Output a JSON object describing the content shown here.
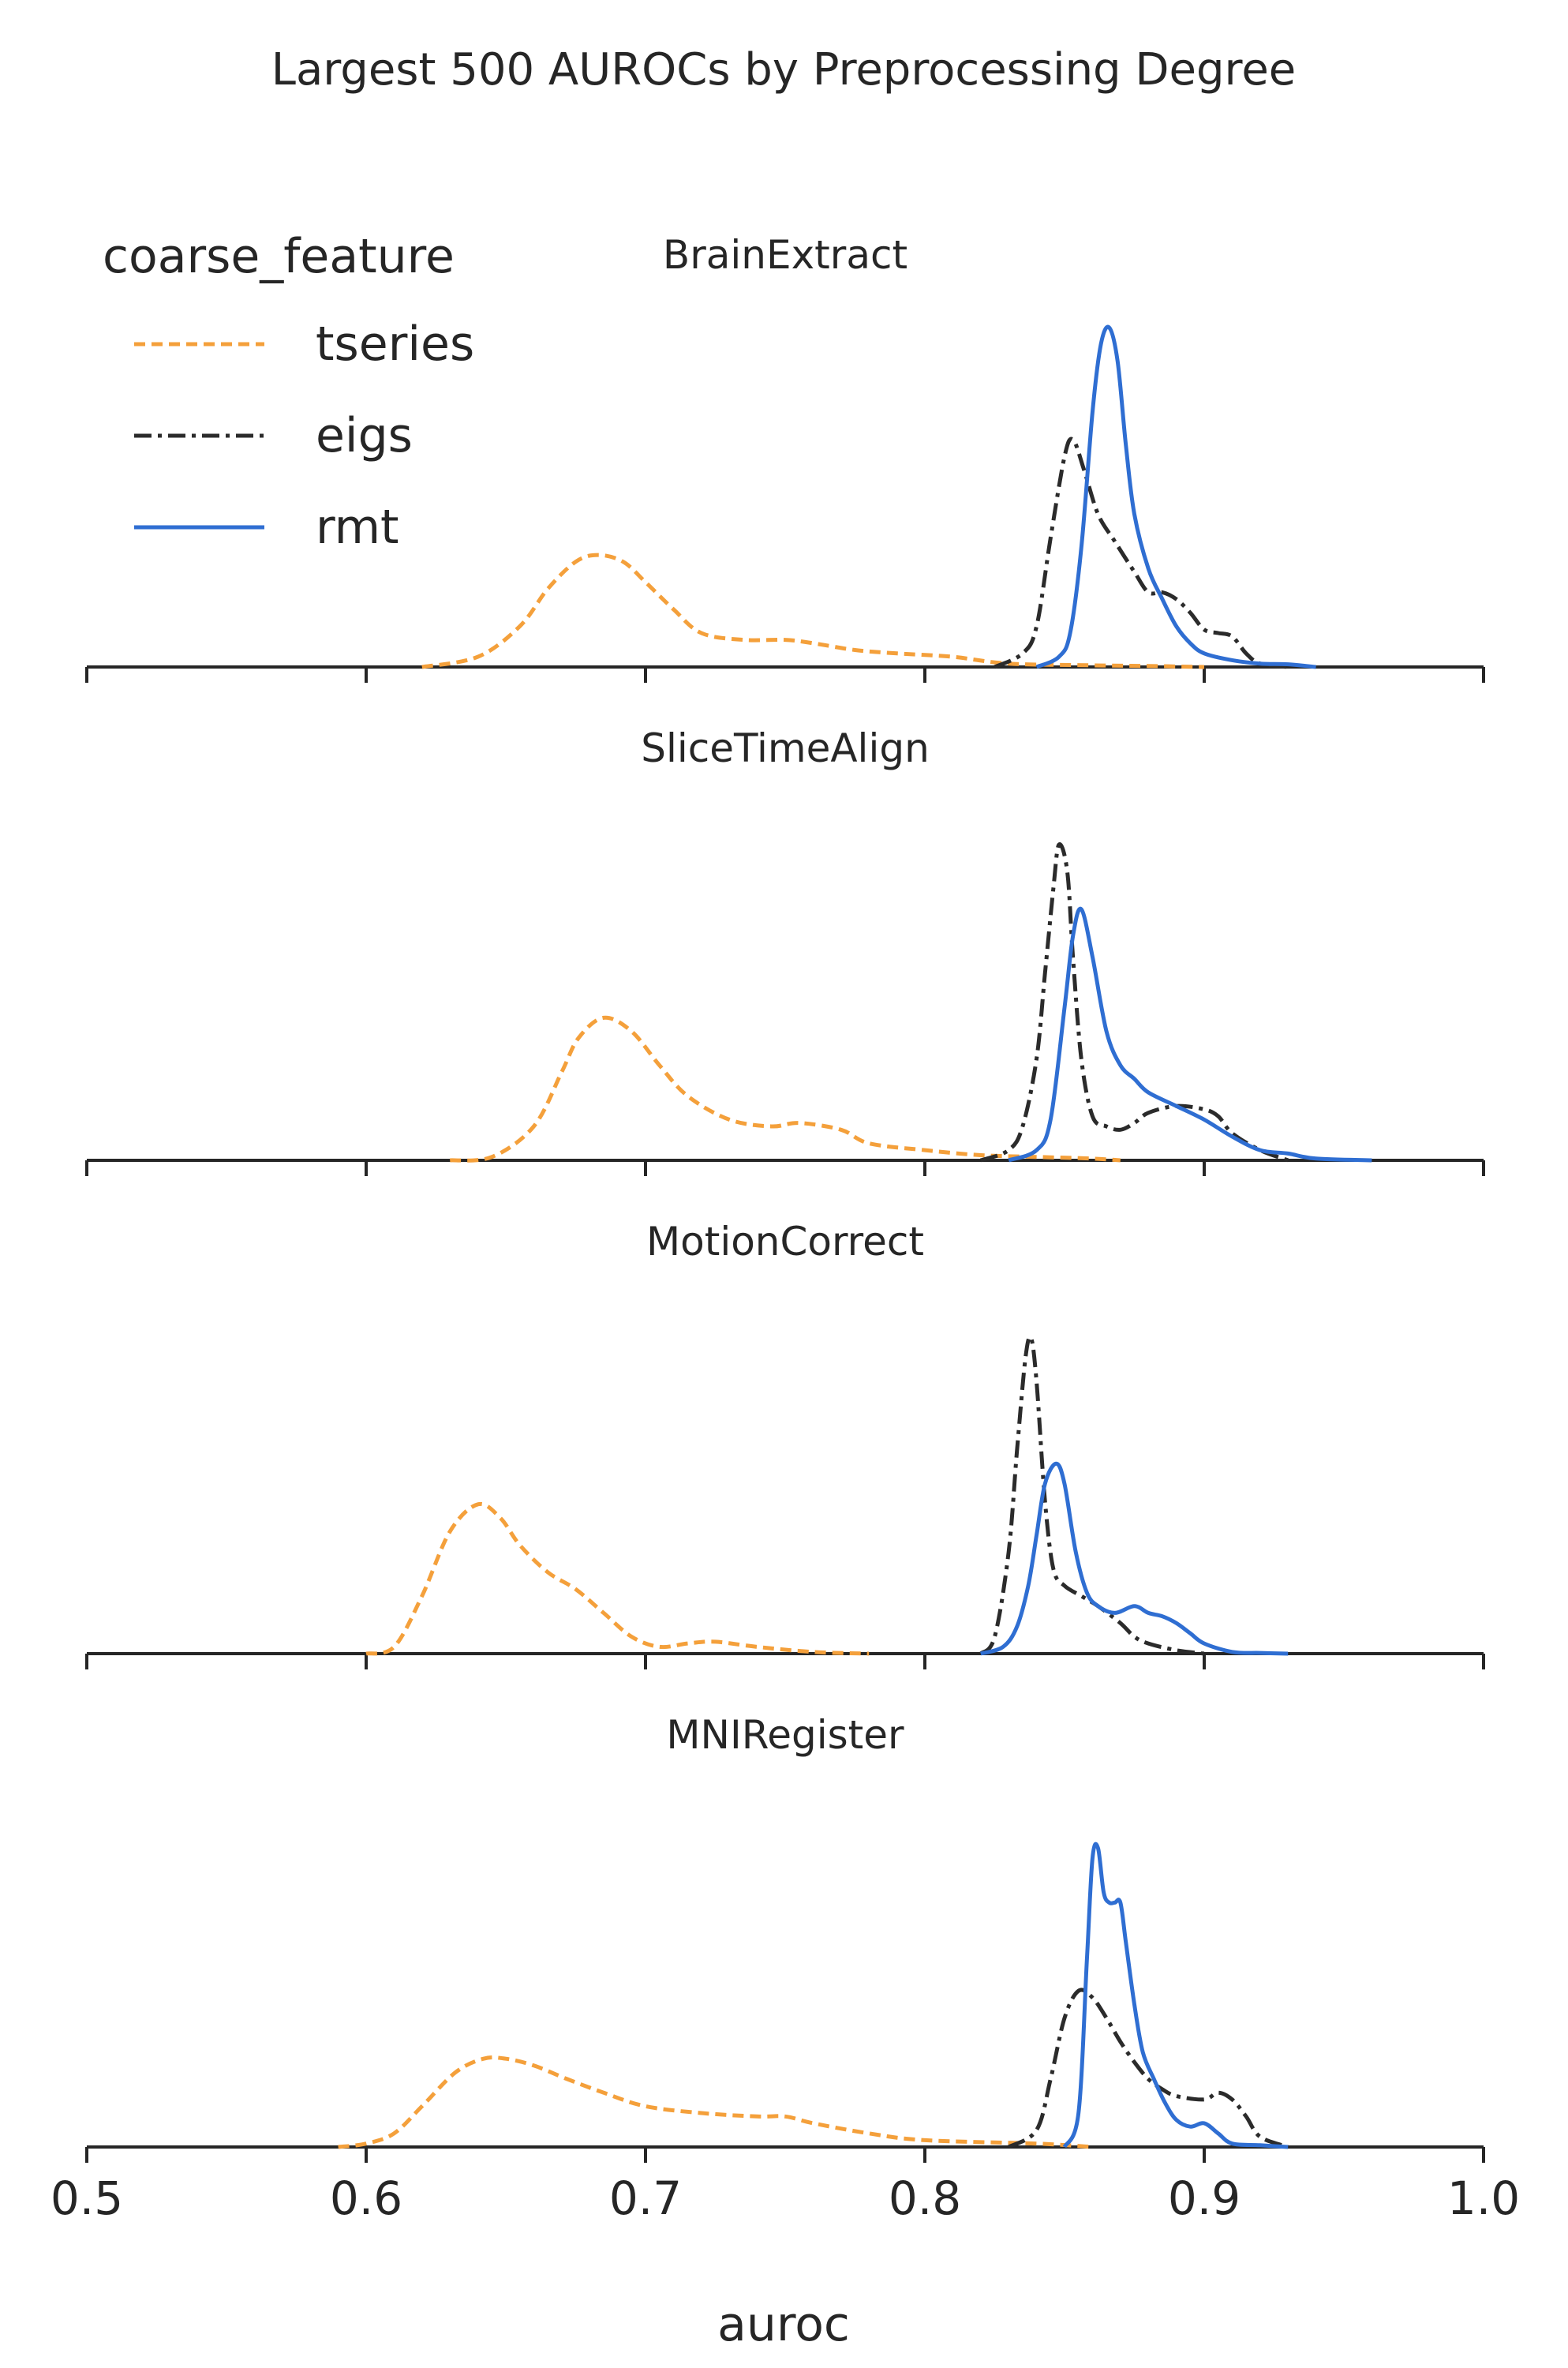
{
  "figure": {
    "title": "Largest 500 AUROCs by Preprocessing Degree",
    "xlabel": "auroc"
  },
  "legend": {
    "title": "coarse_feature",
    "items": [
      {
        "name": "tseries",
        "color": "#f4a03b",
        "dash": "dashed"
      },
      {
        "name": "eigs",
        "color": "#2b2b2b",
        "dash": "dashdot"
      },
      {
        "name": "rmt",
        "color": "#2f6ed2",
        "dash": "solid"
      }
    ]
  },
  "chart_data": {
    "type": "line",
    "xlabel": "auroc",
    "ylabel": "",
    "xlim": [
      0.5,
      1.0
    ],
    "xticks": [
      "0.5",
      "0.6",
      "0.7",
      "0.8",
      "0.9",
      "1.0"
    ],
    "grid": false,
    "legend_position": "top-left",
    "panels": [
      {
        "title": "BrainExtract",
        "ymax": 1.0,
        "series": [
          {
            "name": "tseries",
            "x": [
              0.62,
              0.64,
              0.655,
              0.665,
              0.675,
              0.683,
              0.692,
              0.7,
              0.71,
              0.72,
              0.735,
              0.75,
              0.76,
              0.775,
              0.79,
              0.81,
              0.83,
              0.86,
              0.88,
              0.9
            ],
            "y": [
              0.0,
              0.03,
              0.12,
              0.23,
              0.31,
              0.33,
              0.31,
              0.25,
              0.17,
              0.1,
              0.08,
              0.08,
              0.07,
              0.05,
              0.04,
              0.03,
              0.01,
              0.005,
              0.003,
              0.0
            ]
          },
          {
            "name": "eigs",
            "x": [
              0.825,
              0.835,
              0.84,
              0.845,
              0.85,
              0.853,
              0.857,
              0.862,
              0.868,
              0.875,
              0.88,
              0.885,
              0.89,
              0.895,
              0.9,
              0.905,
              0.91,
              0.915,
              0.92,
              0.93
            ],
            "y": [
              0.0,
              0.04,
              0.12,
              0.38,
              0.62,
              0.67,
              0.58,
              0.45,
              0.37,
              0.28,
              0.22,
              0.22,
              0.2,
              0.16,
              0.11,
              0.1,
              0.09,
              0.04,
              0.01,
              0.0
            ]
          },
          {
            "name": "rmt",
            "x": [
              0.84,
              0.848,
              0.852,
              0.856,
              0.86,
              0.863,
              0.866,
              0.869,
              0.872,
              0.875,
              0.88,
              0.885,
              0.89,
              0.895,
              0.9,
              0.91,
              0.92,
              0.93,
              0.94
            ],
            "y": [
              0.0,
              0.03,
              0.1,
              0.35,
              0.75,
              0.95,
              1.0,
              0.9,
              0.65,
              0.45,
              0.29,
              0.2,
              0.12,
              0.07,
              0.04,
              0.02,
              0.01,
              0.008,
              0.0
            ]
          }
        ]
      },
      {
        "title": "SliceTimeAlign",
        "ymax": 1.0,
        "series": [
          {
            "name": "tseries",
            "x": [
              0.63,
              0.645,
              0.66,
              0.67,
              0.676,
              0.685,
              0.695,
              0.705,
              0.715,
              0.73,
              0.745,
              0.755,
              0.77,
              0.78,
              0.8,
              0.82,
              0.84,
              0.86,
              0.87
            ],
            "y": [
              0.0,
              0.01,
              0.1,
              0.26,
              0.36,
              0.42,
              0.38,
              0.28,
              0.19,
              0.12,
              0.1,
              0.11,
              0.09,
              0.05,
              0.03,
              0.015,
              0.01,
              0.005,
              0.0
            ]
          },
          {
            "name": "eigs",
            "x": [
              0.82,
              0.83,
              0.835,
              0.84,
              0.843,
              0.846,
              0.848,
              0.851,
              0.853,
              0.856,
              0.86,
              0.865,
              0.87,
              0.875,
              0.88,
              0.89,
              0.9,
              0.905,
              0.91,
              0.92,
              0.93
            ],
            "y": [
              0.0,
              0.03,
              0.1,
              0.3,
              0.55,
              0.8,
              0.93,
              0.85,
              0.6,
              0.3,
              0.13,
              0.1,
              0.09,
              0.11,
              0.14,
              0.16,
              0.15,
              0.13,
              0.08,
              0.03,
              0.0
            ]
          },
          {
            "name": "rmt",
            "x": [
              0.83,
              0.84,
              0.845,
              0.85,
              0.853,
              0.856,
              0.86,
              0.865,
              0.87,
              0.875,
              0.88,
              0.89,
              0.9,
              0.91,
              0.92,
              0.93,
              0.94,
              0.96
            ],
            "y": [
              0.0,
              0.03,
              0.12,
              0.45,
              0.66,
              0.74,
              0.6,
              0.38,
              0.28,
              0.24,
              0.2,
              0.16,
              0.12,
              0.07,
              0.03,
              0.02,
              0.005,
              0.0
            ]
          }
        ]
      },
      {
        "title": "MotionCorrect",
        "ymax": 1.0,
        "series": [
          {
            "name": "tseries",
            "x": [
              0.6,
              0.61,
              0.62,
              0.63,
              0.64,
              0.648,
              0.655,
              0.665,
              0.675,
              0.685,
              0.695,
              0.705,
              0.715,
              0.725,
              0.74,
              0.76,
              0.78
            ],
            "y": [
              0.0,
              0.02,
              0.17,
              0.36,
              0.44,
              0.4,
              0.32,
              0.24,
              0.19,
              0.12,
              0.05,
              0.02,
              0.03,
              0.035,
              0.02,
              0.005,
              0.0
            ]
          },
          {
            "name": "eigs",
            "x": [
              0.82,
              0.825,
              0.83,
              0.833,
              0.836,
              0.838,
              0.84,
              0.843,
              0.846,
              0.85,
              0.856,
              0.862,
              0.87,
              0.875,
              0.88,
              0.89,
              0.9
            ],
            "y": [
              0.0,
              0.05,
              0.3,
              0.6,
              0.87,
              0.93,
              0.8,
              0.45,
              0.25,
              0.2,
              0.17,
              0.14,
              0.09,
              0.05,
              0.03,
              0.01,
              0.0
            ]
          },
          {
            "name": "rmt",
            "x": [
              0.82,
              0.828,
              0.833,
              0.837,
              0.84,
              0.843,
              0.847,
              0.85,
              0.854,
              0.858,
              0.862,
              0.868,
              0.875,
              0.88,
              0.885,
              0.89,
              0.895,
              0.9,
              0.91,
              0.92,
              0.93
            ],
            "y": [
              0.0,
              0.02,
              0.08,
              0.2,
              0.35,
              0.5,
              0.56,
              0.5,
              0.3,
              0.18,
              0.14,
              0.12,
              0.14,
              0.12,
              0.11,
              0.09,
              0.06,
              0.03,
              0.005,
              0.002,
              0.0
            ]
          }
        ]
      },
      {
        "title": "MNIRegister",
        "ymax": 1.0,
        "series": [
          {
            "name": "tseries",
            "x": [
              0.59,
              0.6,
              0.61,
              0.62,
              0.632,
              0.642,
              0.65,
              0.66,
              0.672,
              0.685,
              0.7,
              0.72,
              0.74,
              0.75,
              0.76,
              0.78,
              0.8,
              0.84,
              0.86
            ],
            "y": [
              0.0,
              0.01,
              0.04,
              0.12,
              0.22,
              0.26,
              0.26,
              0.24,
              0.2,
              0.16,
              0.12,
              0.1,
              0.09,
              0.09,
              0.07,
              0.04,
              0.02,
              0.01,
              0.0
            ]
          },
          {
            "name": "eigs",
            "x": [
              0.83,
              0.84,
              0.845,
              0.85,
              0.855,
              0.86,
              0.865,
              0.87,
              0.875,
              0.88,
              0.885,
              0.89,
              0.9,
              0.905,
              0.91,
              0.915,
              0.92,
              0.93
            ],
            "y": [
              0.0,
              0.05,
              0.2,
              0.38,
              0.46,
              0.44,
              0.38,
              0.31,
              0.25,
              0.2,
              0.17,
              0.15,
              0.14,
              0.16,
              0.14,
              0.09,
              0.03,
              0.0
            ]
          },
          {
            "name": "rmt",
            "x": [
              0.85,
              0.855,
              0.858,
              0.86,
              0.862,
              0.864,
              0.866,
              0.868,
              0.87,
              0.872,
              0.875,
              0.878,
              0.882,
              0.886,
              0.89,
              0.895,
              0.9,
              0.905,
              0.91,
              0.92,
              0.93
            ],
            "y": [
              0.0,
              0.1,
              0.55,
              0.85,
              0.88,
              0.75,
              0.72,
              0.72,
              0.72,
              0.6,
              0.42,
              0.28,
              0.2,
              0.13,
              0.08,
              0.06,
              0.07,
              0.04,
              0.01,
              0.005,
              0.0
            ]
          }
        ]
      }
    ]
  }
}
